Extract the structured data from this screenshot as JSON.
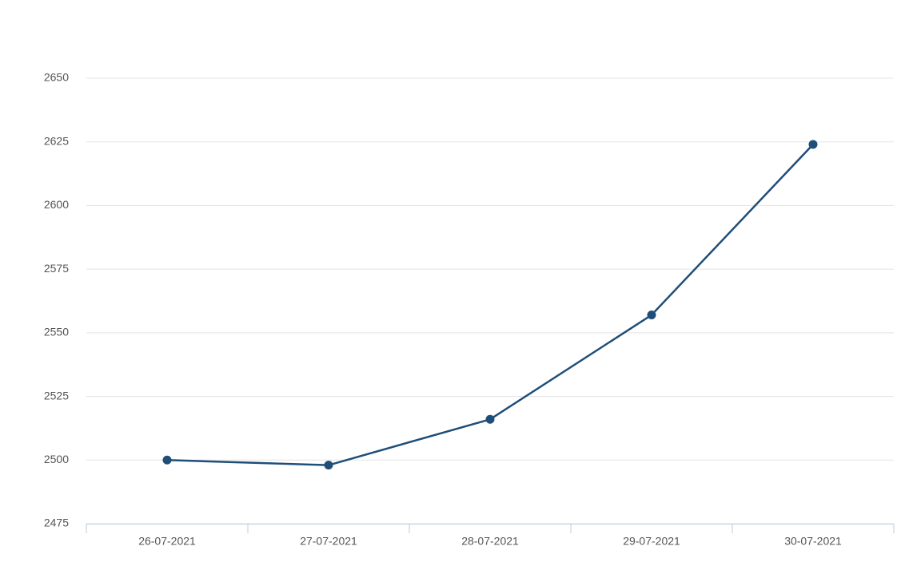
{
  "chart_data": {
    "type": "line",
    "categories": [
      "26-07-2021",
      "27-07-2021",
      "28-07-2021",
      "29-07-2021",
      "30-07-2021"
    ],
    "values": [
      2500,
      2498,
      2516,
      2557,
      2624
    ],
    "color": "#1f4e79",
    "ylim": [
      2475,
      2650
    ],
    "yticks": [
      2475,
      2500,
      2525,
      2550,
      2575,
      2600,
      2625,
      2650
    ],
    "grid": true
  }
}
